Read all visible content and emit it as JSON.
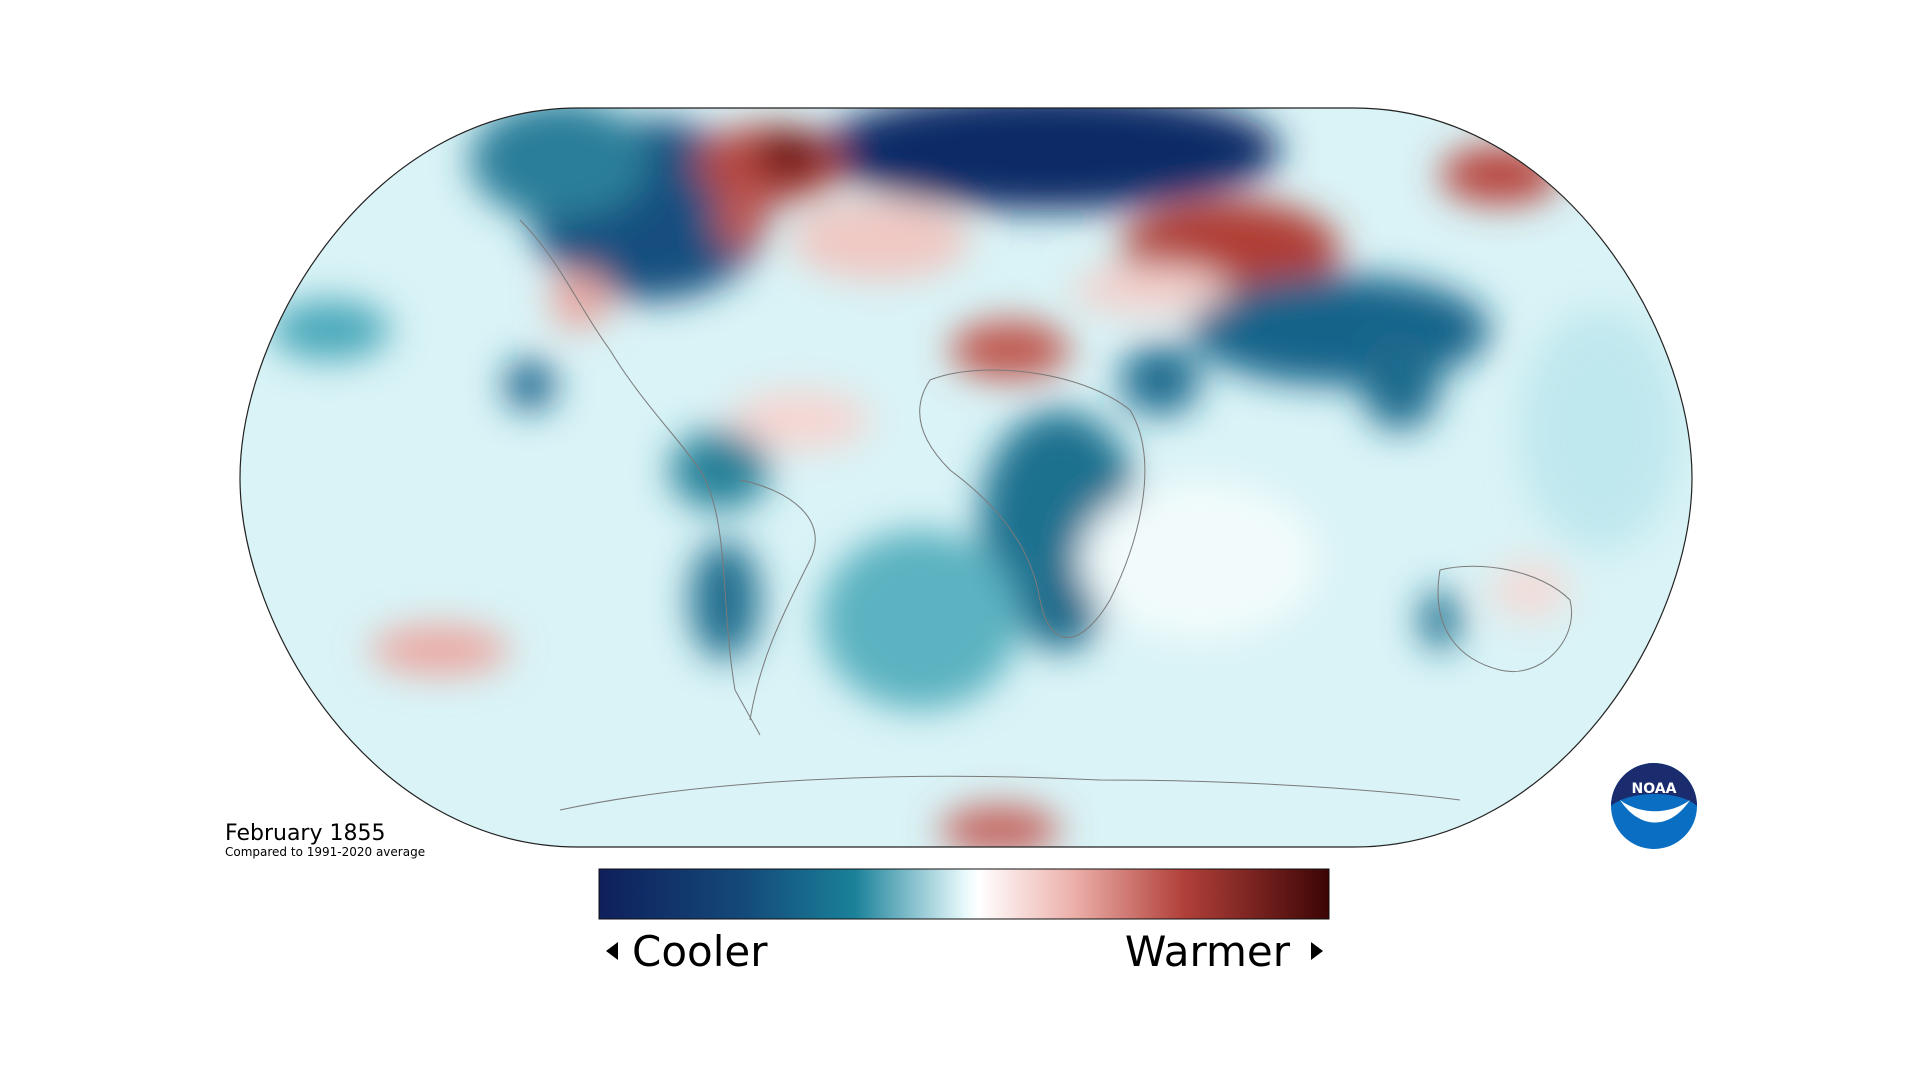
{
  "map": {
    "title": "February 1855",
    "subtitle": "Compared to 1991-2020 average"
  },
  "legend": {
    "low_label": "Cooler",
    "high_label": "Warmer"
  },
  "logo": {
    "text": "NOAA"
  }
}
